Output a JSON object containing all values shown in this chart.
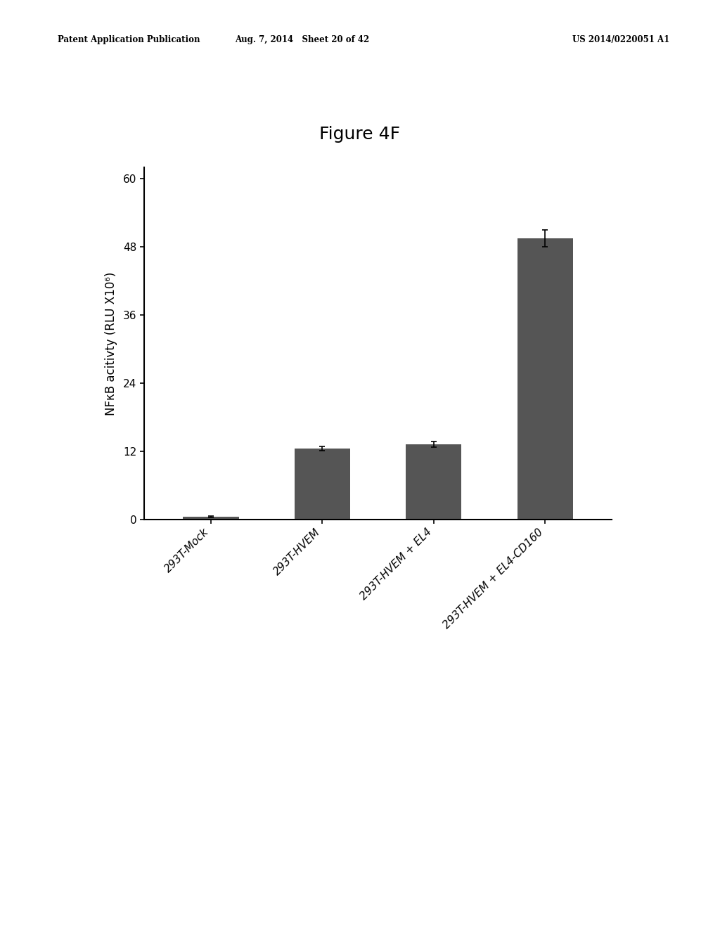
{
  "title": "Figure 4F",
  "categories": [
    "293T-Mock",
    "293T-HVEM",
    "293T-HVEM + EL4",
    "293T-HVEM + EL4-CD160"
  ],
  "values": [
    0.5,
    12.5,
    13.2,
    49.5
  ],
  "errors": [
    0.1,
    0.4,
    0.5,
    1.5
  ],
  "bar_color": "#555555",
  "ylabel": "NFκB acitivty (RLU X10⁶)",
  "ylim": [
    0,
    62
  ],
  "yticks": [
    0,
    12,
    24,
    36,
    48,
    60
  ],
  "background_color": "#ffffff",
  "title_fontsize": 18,
  "axis_fontsize": 12,
  "tick_fontsize": 11,
  "header_left": "Patent Application Publication",
  "header_mid": "Aug. 7, 2014   Sheet 20 of 42",
  "header_right": "US 2014/0220051 A1"
}
